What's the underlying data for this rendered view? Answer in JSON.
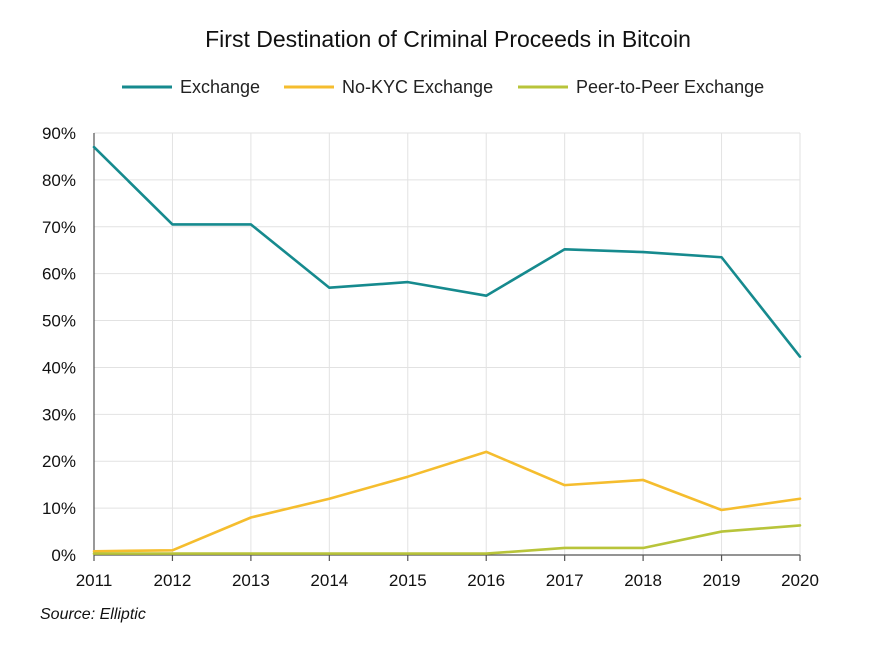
{
  "chart_data": {
    "type": "line",
    "title": "First Destination of Criminal Proceeds in Bitcoin",
    "xlabel": "",
    "ylabel": "",
    "x": [
      "2011",
      "2012",
      "2013",
      "2014",
      "2015",
      "2016",
      "2017",
      "2018",
      "2019",
      "2020"
    ],
    "ylim": [
      0,
      90
    ],
    "yticks": [
      "0%",
      "10%",
      "20%",
      "30%",
      "40%",
      "50%",
      "60%",
      "70%",
      "80%",
      "90%"
    ],
    "grid": true,
    "legend_position": "top",
    "series": [
      {
        "name": "Exchange",
        "color": "#168a8e",
        "values": [
          87,
          70.5,
          70.5,
          57,
          58.2,
          55.3,
          65.2,
          64.6,
          63.5,
          42.3
        ]
      },
      {
        "name": "No-KYC Exchange",
        "color": "#f5bd2e",
        "values": [
          0.8,
          1,
          8,
          12,
          16.7,
          22,
          14.9,
          16,
          9.6,
          12
        ]
      },
      {
        "name": "Peer-to-Peer Exchange",
        "color": "#b8c43a",
        "values": [
          0.3,
          0.3,
          0.3,
          0.3,
          0.3,
          0.3,
          1.5,
          1.5,
          5,
          6.3
        ]
      }
    ],
    "source": "Source: Elliptic"
  }
}
